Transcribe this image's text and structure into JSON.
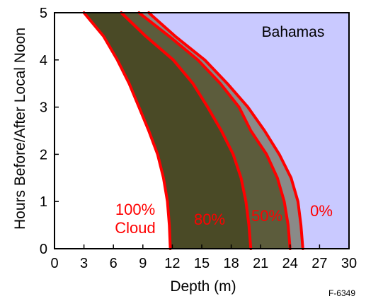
{
  "chart_data": {
    "type": "area",
    "xlabel": "Depth (m)",
    "ylabel": "Hours Before/After Local Noon",
    "xlim": [
      0,
      30
    ],
    "ylim": [
      0,
      5
    ],
    "xticks": [
      "0",
      "3",
      "6",
      "9",
      "12",
      "15",
      "18",
      "21",
      "24",
      "27",
      "30"
    ],
    "yticks": [
      "0",
      "1",
      "2",
      "3",
      "4",
      "5"
    ],
    "region_label": "Bahamas",
    "figure_id": "F-6349",
    "background_color": "#c9c9ff",
    "curve_color": "#ff0000",
    "series": [
      {
        "label_lines": [
          "100%",
          "Cloud"
        ],
        "fill_color": "#2a2a00",
        "y": [
          5.0,
          4.5,
          4.0,
          3.5,
          3.0,
          2.5,
          2.0,
          1.5,
          1.0,
          0.5,
          0.0
        ],
        "depth": [
          3.0,
          5.0,
          6.4,
          7.6,
          8.6,
          9.6,
          10.5,
          11.1,
          11.5,
          11.7,
          11.8
        ]
      },
      {
        "label_lines": [
          "80%"
        ],
        "fill_color": "#4a4a26",
        "y": [
          5.0,
          4.5,
          4.0,
          3.5,
          3.0,
          2.5,
          2.0,
          1.5,
          1.0,
          0.5,
          0.0
        ],
        "depth": [
          6.8,
          9.3,
          12.1,
          14.1,
          15.6,
          17.0,
          18.2,
          19.0,
          19.5,
          19.8,
          20.0
        ]
      },
      {
        "label_lines": [
          "50%"
        ],
        "fill_color": "#5c5c3c",
        "y": [
          5.0,
          4.5,
          4.0,
          3.5,
          3.0,
          2.5,
          2.0,
          1.5,
          1.0,
          0.5,
          0.0
        ],
        "depth": [
          8.6,
          11.7,
          14.6,
          16.9,
          18.8,
          20.0,
          21.6,
          22.7,
          23.4,
          23.8,
          24.0
        ]
      },
      {
        "label_lines": [
          "0%"
        ],
        "fill_color": "#8a8a88",
        "y": [
          5.0,
          4.5,
          4.0,
          3.5,
          3.0,
          2.5,
          2.0,
          1.5,
          1.0,
          0.5,
          0.0
        ],
        "depth": [
          9.6,
          12.3,
          15.3,
          17.6,
          19.7,
          21.4,
          22.9,
          24.1,
          24.8,
          25.1,
          25.3
        ]
      }
    ]
  }
}
